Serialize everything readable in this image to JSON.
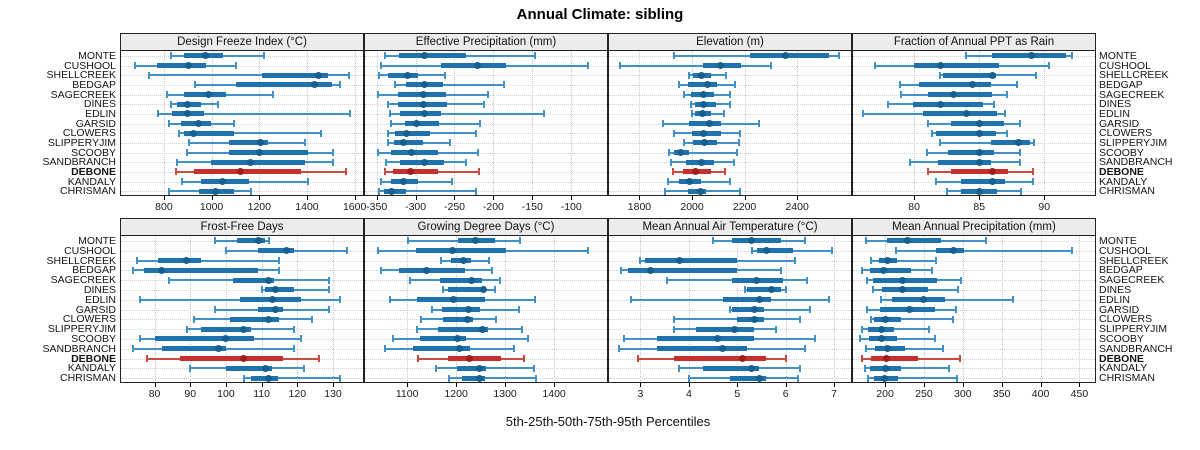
{
  "title": "Annual Climate: sibling",
  "caption": "5th-25th-50th-75th-95th Percentiles",
  "colors": {
    "normal_line": "#4191c9",
    "normal_box": "#1f72ae",
    "normal_dot": "#16608f",
    "highlight_line": "#cc4a42",
    "highlight_box": "#c4302b",
    "highlight_dot": "#9f1d20",
    "strip_bg": "#ececec",
    "grid": "#cccccc",
    "border": "#222222"
  },
  "chart_data": {
    "type": "dot-whisker-percentiles",
    "percentiles": [
      5,
      25,
      50,
      75,
      95
    ],
    "grid": "dotted",
    "highlight_station": "DEBONE",
    "stations": [
      "MONTE",
      "CUSHOOL",
      "SHELLCREEK",
      "BEDGAP",
      "SAGECREEK",
      "DINES",
      "EDLIN",
      "GARSID",
      "CLOWERS",
      "SLIPPERYJIM",
      "SCOOBY",
      "SANDBRANCH",
      "DEBONE",
      "KANDALY",
      "CHRISMAN"
    ],
    "panels": [
      {
        "title": "Design Freeze Index (°C)",
        "domain": [
          620,
          1635
        ],
        "ticks": [
          800,
          1000,
          1200,
          1400,
          1600
        ],
        "series": [
          [
            830,
            885,
            975,
            1048,
            1218
          ],
          [
            680,
            772,
            905,
            978,
            1102
          ],
          [
            737,
            1210,
            1450,
            1490,
            1575
          ],
          [
            931,
            1102,
            1432,
            1505,
            1540
          ],
          [
            811,
            886,
            987,
            1060,
            1256
          ],
          [
            831,
            856,
            898,
            954,
            1025
          ],
          [
            776,
            835,
            898,
            968,
            1580
          ],
          [
            821,
            870,
            947,
            997,
            1095
          ],
          [
            863,
            884,
            926,
            1095,
            1460
          ],
          [
            905,
            1074,
            1207,
            1235,
            1390
          ],
          [
            898,
            1074,
            1200,
            1404,
            1509
          ],
          [
            856,
            997,
            1165,
            1390,
            1509
          ],
          [
            849,
            926,
            1123,
            1376,
            1565
          ],
          [
            877,
            954,
            1046,
            1158,
            1404
          ],
          [
            821,
            947,
            1015,
            1095,
            1165
          ]
        ]
      },
      {
        "title": "Effective Precipitation (mm)",
        "domain": [
          -365,
          -54
        ],
        "ticks": [
          -350,
          -300,
          -250,
          -200,
          -150,
          -100
        ],
        "series": [
          [
            -339,
            -321,
            -288,
            -235,
            -146
          ],
          [
            -345,
            -267,
            -220,
            -184,
            -78
          ],
          [
            -347,
            -335,
            -310,
            -297,
            -262
          ],
          [
            -326,
            -312,
            -288,
            -265,
            -186
          ],
          [
            -348,
            -322,
            -290,
            -261,
            -207
          ],
          [
            -336,
            -322,
            -290,
            -260,
            -212
          ],
          [
            -333,
            -320,
            -289,
            -267,
            -135
          ],
          [
            -331,
            -314,
            -299,
            -270,
            -217
          ],
          [
            -336,
            -327,
            -312,
            -282,
            -222
          ],
          [
            -335,
            -328,
            -316,
            -291,
            -256
          ],
          [
            -348,
            -331,
            -305,
            -271,
            -220
          ],
          [
            -338,
            -320,
            -288,
            -263,
            -235
          ],
          [
            -339,
            -329,
            -306,
            -271,
            -218
          ],
          [
            -345,
            -331,
            -315,
            -297,
            -253
          ],
          [
            -347,
            -341,
            -331,
            -312,
            -222
          ]
        ]
      },
      {
        "title": "Elevation (m)",
        "domain": [
          1684,
          2605
        ],
        "ticks": [
          1800,
          2000,
          2200,
          2400
        ],
        "series": [
          [
            1930,
            2220,
            2357,
            2520,
            2560
          ],
          [
            1725,
            2040,
            2110,
            2185,
            2300
          ],
          [
            1989,
            2002,
            2037,
            2071,
            2128
          ],
          [
            1950,
            1985,
            2058,
            2096,
            2165
          ],
          [
            1968,
            1995,
            2042,
            2084,
            2146
          ],
          [
            1995,
            2010,
            2042,
            2090,
            2144
          ],
          [
            1998,
            2010,
            2039,
            2071,
            2121
          ],
          [
            1888,
            1989,
            2067,
            2109,
            2254
          ],
          [
            1932,
            1998,
            2042,
            2109,
            2184
          ],
          [
            1968,
            2005,
            2046,
            2096,
            2178
          ],
          [
            1913,
            1932,
            1955,
            1989,
            2172
          ],
          [
            1920,
            1976,
            2036,
            2084,
            2159
          ],
          [
            1926,
            1964,
            2014,
            2071,
            2126
          ],
          [
            1910,
            1951,
            1989,
            2033,
            2146
          ],
          [
            1897,
            1983,
            2031,
            2052,
            2184
          ]
        ]
      },
      {
        "title": "Fraction of Annual PPT as Rain",
        "domain": [
          75.3,
          93.9
        ],
        "ticks": [
          80,
          85,
          90
        ],
        "series": [
          [
            84,
            86,
            89,
            91.7,
            92.1
          ],
          [
            77,
            80,
            82,
            86.5,
            90.4
          ],
          [
            82,
            82.2,
            86,
            86.3,
            89.4
          ],
          [
            78.9,
            80.4,
            84.5,
            85.9,
            87.9
          ],
          [
            79,
            81.1,
            83,
            86,
            87.1
          ],
          [
            78,
            79.9,
            82,
            85.3,
            86.1
          ],
          [
            76.1,
            80.7,
            84,
            86.4,
            87
          ],
          [
            81.1,
            82.8,
            85,
            86.9,
            88.1
          ],
          [
            81.4,
            81.7,
            85,
            86.3,
            87.1
          ],
          [
            82,
            85.9,
            88,
            88.9,
            89.2
          ],
          [
            81,
            82.6,
            85,
            86.1,
            88.1
          ],
          [
            79.7,
            81.8,
            85,
            85.9,
            88.1
          ],
          [
            81.1,
            82.8,
            86,
            87.2,
            89.1
          ],
          [
            81.7,
            83.6,
            86,
            87,
            89.1
          ],
          [
            82.5,
            83.6,
            85,
            86.4,
            88.2
          ]
        ]
      },
      {
        "title": "Frost-Free Days",
        "domain": [
          70.6,
          138.4
        ],
        "ticks": [
          80,
          90,
          100,
          110,
          120,
          130
        ],
        "series": [
          [
            97,
            103,
            109,
            111,
            112
          ],
          [
            100,
            109,
            117,
            119,
            134
          ],
          [
            75,
            81,
            89,
            93,
            115
          ],
          [
            74,
            77,
            82,
            109,
            115
          ],
          [
            84,
            102,
            112,
            113.5,
            129
          ],
          [
            110,
            111,
            114,
            119,
            129
          ],
          [
            76,
            104,
            113,
            121,
            132
          ],
          [
            97,
            109,
            114,
            116,
            129
          ],
          [
            91,
            101,
            112,
            115,
            124
          ],
          [
            89,
            93,
            105,
            107,
            119
          ],
          [
            76,
            80,
            100,
            108,
            121
          ],
          [
            74,
            82,
            98,
            100,
            119
          ],
          [
            78,
            87,
            105,
            116,
            126
          ],
          [
            90,
            100,
            111,
            113,
            122
          ],
          [
            105,
            107,
            112,
            114.5,
            132
          ]
        ]
      },
      {
        "title": "Growing Degree Days (°C)",
        "domain": [
          1014,
          1508
        ],
        "ticks": [
          1100,
          1200,
          1300,
          1400
        ],
        "series": [
          [
            1102,
            1203,
            1240,
            1280,
            1330
          ],
          [
            1041,
            1118,
            1192,
            1302,
            1469
          ],
          [
            1169,
            1189,
            1215,
            1231,
            1267
          ],
          [
            1047,
            1083,
            1139,
            1218,
            1274
          ],
          [
            1105,
            1167,
            1231,
            1252,
            1289
          ],
          [
            1174,
            1183,
            1256,
            1262,
            1279
          ],
          [
            1066,
            1120,
            1194,
            1258,
            1362
          ],
          [
            1151,
            1171,
            1225,
            1248,
            1329
          ],
          [
            1128,
            1174,
            1223,
            1235,
            1281
          ],
          [
            1120,
            1164,
            1254,
            1265,
            1335
          ],
          [
            1072,
            1127,
            1203,
            1221,
            1346
          ],
          [
            1054,
            1113,
            1206,
            1228,
            1319
          ],
          [
            1122,
            1184,
            1227,
            1292,
            1339
          ],
          [
            1159,
            1201,
            1247,
            1262,
            1360
          ],
          [
            1186,
            1211,
            1247,
            1258,
            1363
          ]
        ]
      },
      {
        "title": "Mean Annual Air Temperature (°C)",
        "domain": [
          2.35,
          7.35
        ],
        "ticks": [
          3,
          4,
          5,
          6,
          7
        ],
        "series": [
          [
            4.5,
            4.9,
            5.3,
            5.9,
            6.4
          ],
          [
            5.3,
            5.4,
            5.6,
            6.15,
            6.95
          ],
          [
            3,
            3.1,
            3.8,
            5,
            6.2
          ],
          [
            2.6,
            2.75,
            3.2,
            5,
            5.9
          ],
          [
            3.55,
            4.9,
            5.4,
            5.95,
            6.45
          ],
          [
            5.15,
            5.2,
            5.7,
            5.9,
            6
          ],
          [
            2.8,
            4.7,
            5.45,
            5.7,
            6.9
          ],
          [
            4.85,
            4.9,
            5.35,
            5.55,
            6.5
          ],
          [
            3.7,
            5,
            5.35,
            5.55,
            6.3
          ],
          [
            3.7,
            4.15,
            4.95,
            5.35,
            5.8
          ],
          [
            2.65,
            3.35,
            4.6,
            5.35,
            6.6
          ],
          [
            2.55,
            3.35,
            4.7,
            5.2,
            6.4
          ],
          [
            2.95,
            3.7,
            5.1,
            5.6,
            6
          ],
          [
            3.8,
            4.3,
            5.3,
            5.45,
            6.3
          ],
          [
            4,
            4.85,
            5.45,
            5.6,
            6.25
          ]
        ]
      },
      {
        "title": "Mean Annual Precipitation (mm)",
        "domain": [
          158.8,
          470
        ],
        "ticks": [
          200,
          250,
          300,
          350,
          400,
          450
        ],
        "series": [
          [
            175,
            202,
            229,
            272,
            330
          ],
          [
            214,
            266,
            288,
            301,
            440
          ],
          [
            182,
            192,
            203,
            215,
            265
          ],
          [
            171,
            181,
            198,
            234,
            260
          ],
          [
            177,
            184,
            222,
            267,
            298
          ],
          [
            185,
            196,
            223,
            255,
            294
          ],
          [
            195,
            209,
            250,
            277,
            364
          ],
          [
            177,
            194,
            231,
            264,
            291
          ],
          [
            182,
            186,
            201,
            221,
            288
          ],
          [
            170,
            178,
            195,
            211,
            256
          ],
          [
            168,
            179,
            196,
            215,
            264
          ],
          [
            175,
            187,
            203,
            226,
            274
          ],
          [
            171,
            182,
            202,
            243,
            296
          ],
          [
            174,
            181,
            200,
            220,
            282
          ],
          [
            178,
            186,
            199,
            217,
            293
          ]
        ]
      }
    ]
  }
}
